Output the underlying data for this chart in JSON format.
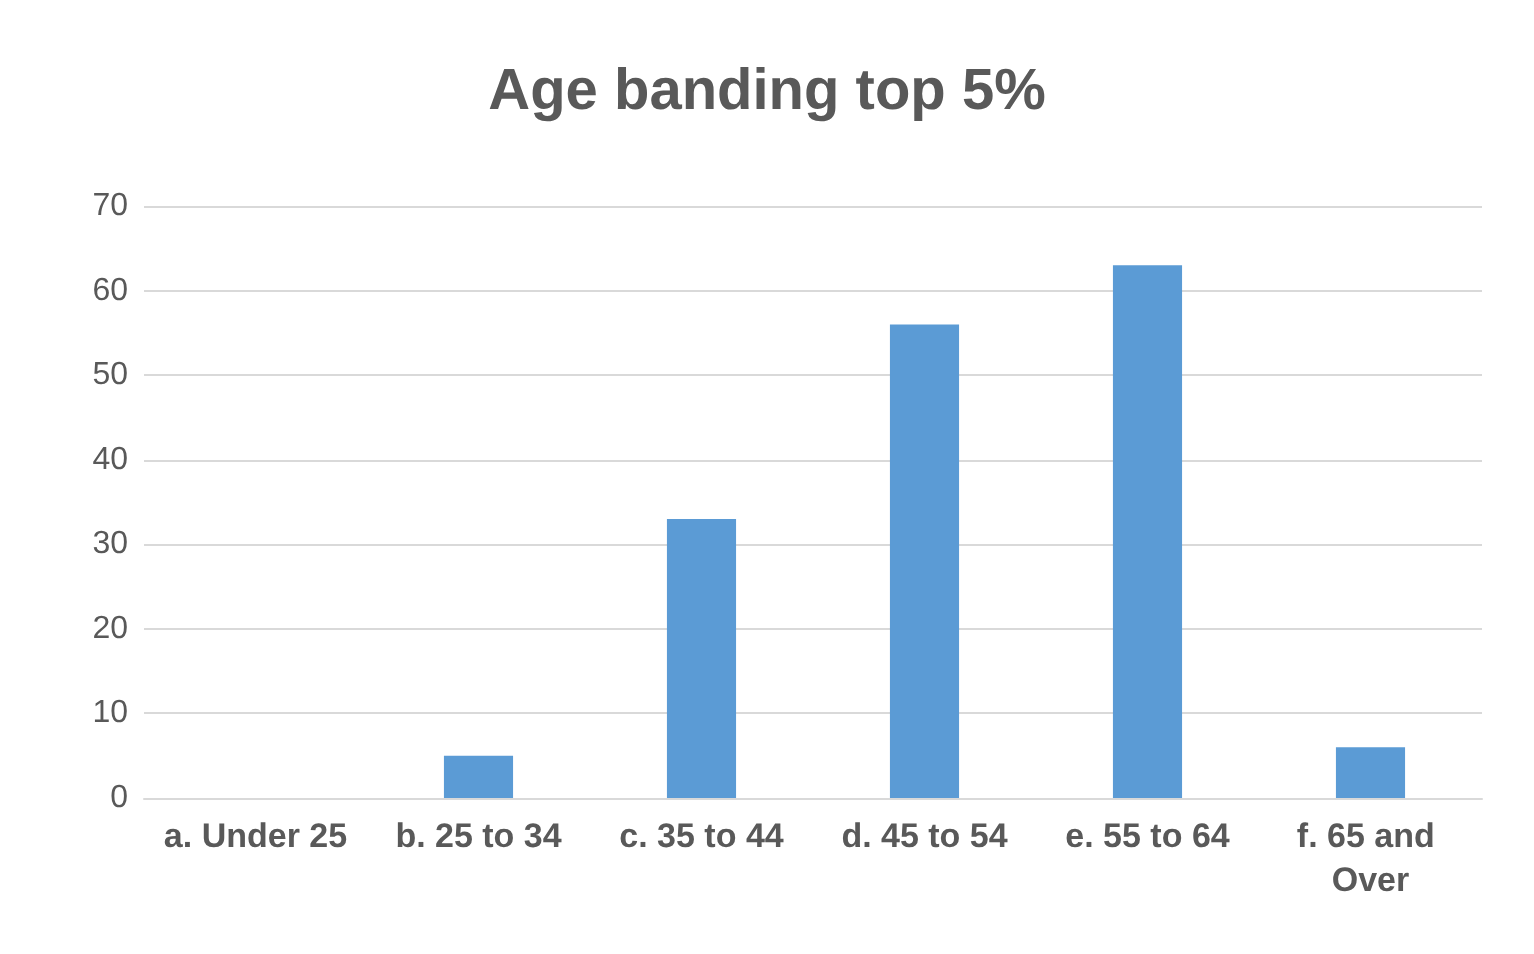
{
  "chart_data": {
    "type": "bar",
    "title": "Age banding top 5%",
    "categories": [
      "a. Under 25",
      "b. 25 to 34",
      "c. 35 to 44",
      "d. 45 to 54",
      "e. 55 to 64",
      "f. 65 and Over"
    ],
    "values": [
      0,
      5,
      33,
      56,
      63,
      6
    ],
    "color": "#5b9bd5",
    "ylim": [
      0,
      70
    ],
    "yticks": [
      0,
      10,
      20,
      30,
      40,
      50,
      60,
      70
    ],
    "grid": "y"
  }
}
